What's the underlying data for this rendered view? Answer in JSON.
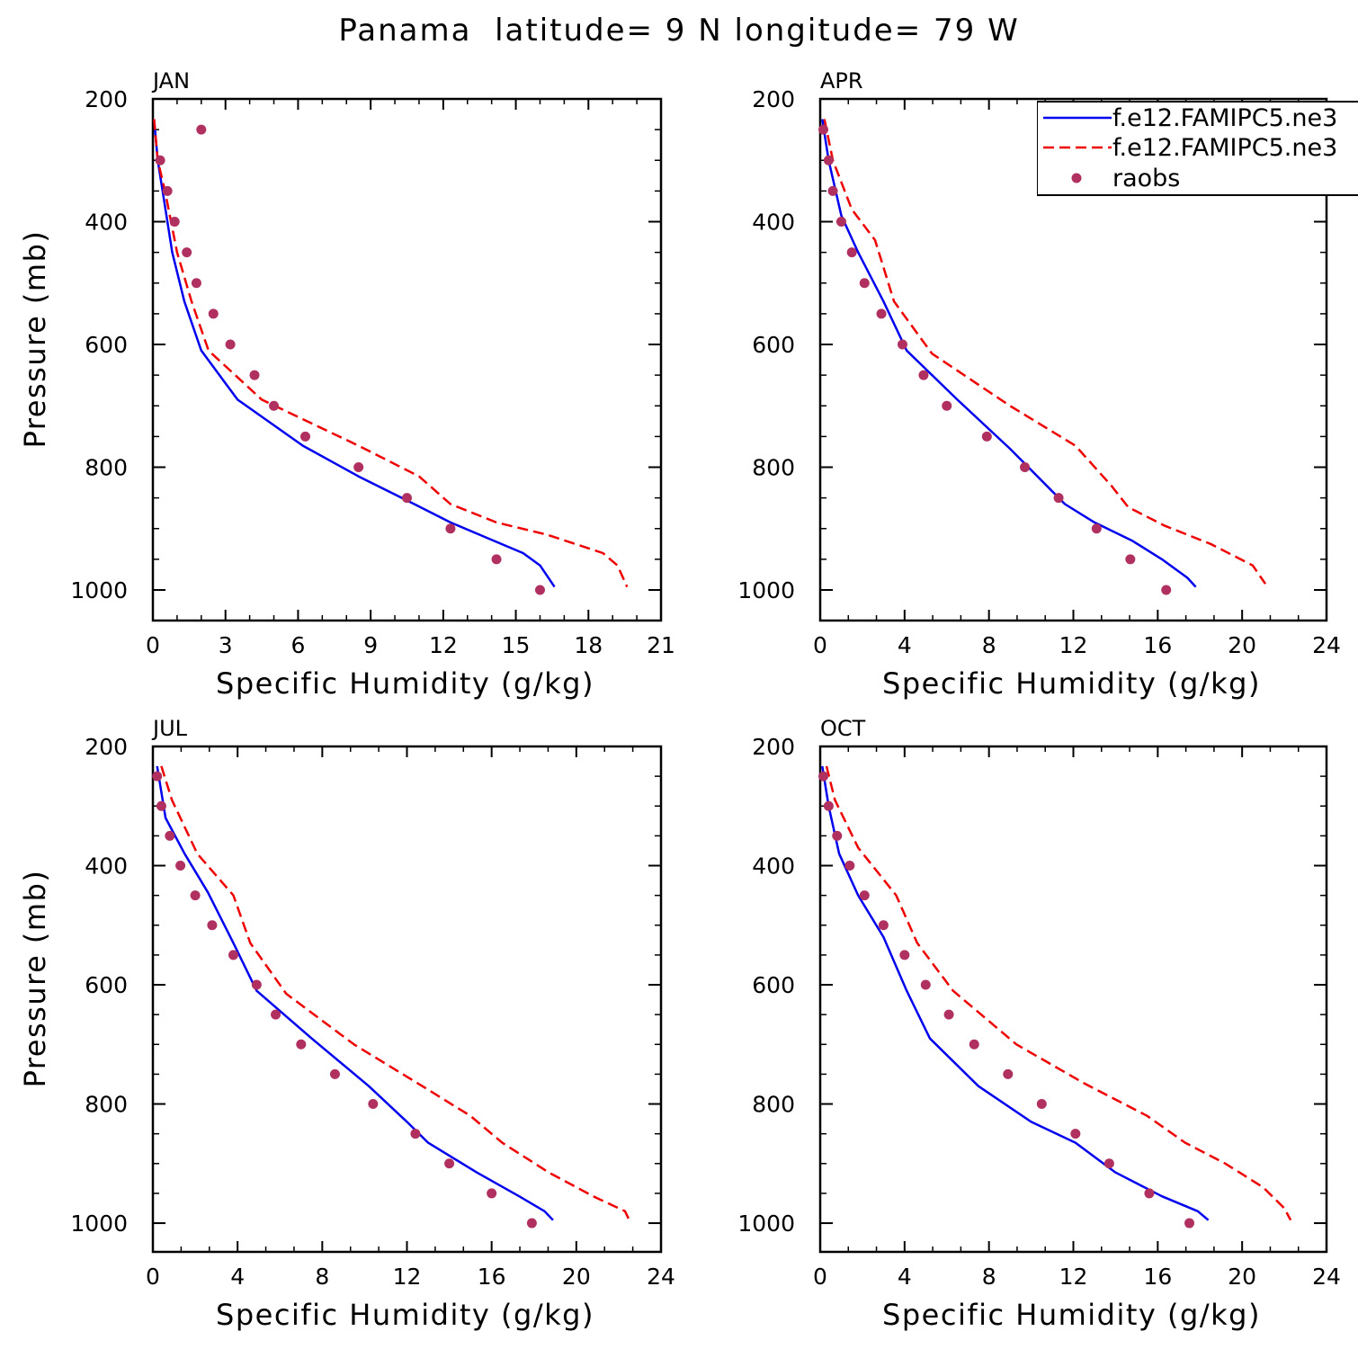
{
  "figure": {
    "title": "Panama  latitude= 9 N longitude= 79 W"
  },
  "chart_data": [
    {
      "type": "line",
      "panel": "JAN",
      "xlabel": "Specific Humidity (g/kg)",
      "ylabel": "Pressure (mb)",
      "xlim": [
        0,
        21
      ],
      "ylim": [
        200,
        1000
      ],
      "y_inverted": true,
      "xticks": [
        0,
        3,
        6,
        9,
        12,
        15,
        18,
        21
      ],
      "yticks": [
        200,
        400,
        600,
        800,
        1000
      ],
      "series": [
        {
          "name": "f.e12.FAMIPC5.ne3",
          "style": "solid",
          "color": "#0000ee",
          "x": [
            0.05,
            0.2,
            0.4,
            0.8,
            1.3,
            2.0,
            3.5,
            6.2,
            8.5,
            10.8,
            12.3,
            13.8,
            15.3,
            16.0,
            16.6
          ],
          "y": [
            233,
            300,
            350,
            450,
            530,
            610,
            690,
            765,
            815,
            860,
            890,
            915,
            940,
            960,
            995
          ]
        },
        {
          "name": "f.e12.FAMIPC5.ne3",
          "style": "dashed",
          "color": "#ee0000",
          "x": [
            0.05,
            0.2,
            0.5,
            1.0,
            1.6,
            2.3,
            4.5,
            8.5,
            11.0,
            12.3,
            14.2,
            16.3,
            18.6,
            19.2,
            19.6
          ],
          "y": [
            233,
            300,
            350,
            450,
            530,
            610,
            690,
            765,
            815,
            860,
            890,
            910,
            940,
            960,
            995
          ]
        },
        {
          "name": "raobs",
          "style": "markers",
          "color": "#b03060",
          "x": [
            2.0,
            0.3,
            0.6,
            0.9,
            1.4,
            1.8,
            2.5,
            3.2,
            4.2,
            5.0,
            6.3,
            8.5,
            10.5,
            12.3,
            14.2,
            16.0
          ],
          "y": [
            250,
            300,
            350,
            400,
            450,
            500,
            550,
            600,
            650,
            700,
            750,
            800,
            850,
            900,
            950,
            1000
          ]
        }
      ]
    },
    {
      "type": "line",
      "panel": "APR",
      "xlabel": "Specific Humidity (g/kg)",
      "ylabel": "",
      "xlim": [
        0,
        24
      ],
      "ylim": [
        200,
        1000
      ],
      "y_inverted": true,
      "xticks": [
        0,
        4,
        8,
        12,
        16,
        20,
        24
      ],
      "yticks": [
        200,
        400,
        600,
        800,
        1000
      ],
      "legend": "top-right",
      "series": [
        {
          "name": "f.e12.FAMIPC5.ne3",
          "style": "solid",
          "color": "#0000ee",
          "x": [
            0.1,
            0.4,
            1.0,
            1.8,
            3.0,
            4.1,
            6.5,
            9.0,
            11.6,
            13.0,
            14.8,
            16.2,
            17.4,
            17.8
          ],
          "y": [
            233,
            300,
            390,
            450,
            530,
            610,
            690,
            770,
            860,
            890,
            920,
            950,
            980,
            995
          ]
        },
        {
          "name": "f.e12.FAMIPC5.ne3",
          "style": "dashed",
          "color": "#ee0000",
          "x": [
            0.2,
            0.6,
            1.5,
            2.6,
            3.5,
            5.3,
            9.0,
            12.1,
            13.8,
            14.6,
            16.3,
            18.5,
            20.5,
            21.1
          ],
          "y": [
            233,
            300,
            380,
            430,
            530,
            615,
            700,
            765,
            830,
            865,
            895,
            925,
            960,
            990
          ]
        },
        {
          "name": "raobs",
          "style": "markers",
          "color": "#b03060",
          "x": [
            0.15,
            0.4,
            0.6,
            1.0,
            1.5,
            2.1,
            2.9,
            3.9,
            4.9,
            6.0,
            7.9,
            9.7,
            11.3,
            13.1,
            14.7,
            16.4
          ],
          "y": [
            250,
            300,
            350,
            400,
            450,
            500,
            550,
            600,
            650,
            700,
            750,
            800,
            850,
            900,
            950,
            1000
          ]
        }
      ]
    },
    {
      "type": "line",
      "panel": "JUL",
      "xlabel": "Specific Humidity (g/kg)",
      "ylabel": "Pressure (mb)",
      "xlim": [
        0,
        24
      ],
      "ylim": [
        200,
        1000
      ],
      "y_inverted": true,
      "xticks": [
        0,
        4,
        8,
        12,
        16,
        20,
        24
      ],
      "yticks": [
        200,
        400,
        600,
        800,
        1000
      ],
      "series": [
        {
          "name": "f.e12.FAMIPC5.ne3",
          "style": "solid",
          "color": "#0000ee",
          "x": [
            0.2,
            0.6,
            1.5,
            2.6,
            3.8,
            4.9,
            7.5,
            10.2,
            12.0,
            13.0,
            15.3,
            17.3,
            18.5,
            18.9
          ],
          "y": [
            233,
            320,
            380,
            445,
            530,
            610,
            690,
            770,
            830,
            865,
            915,
            955,
            980,
            995
          ]
        },
        {
          "name": "f.e12.FAMIPC5.ne3",
          "style": "dashed",
          "color": "#ee0000",
          "x": [
            0.4,
            0.9,
            2.1,
            3.8,
            4.6,
            6.3,
            9.5,
            12.5,
            15.0,
            16.5,
            18.7,
            20.8,
            22.3,
            22.5
          ],
          "y": [
            233,
            290,
            380,
            450,
            530,
            615,
            700,
            765,
            820,
            865,
            915,
            955,
            980,
            995
          ]
        },
        {
          "name": "raobs",
          "style": "markers",
          "color": "#b03060",
          "x": [
            0.2,
            0.4,
            0.8,
            1.3,
            2.0,
            2.8,
            3.8,
            4.9,
            5.8,
            7.0,
            8.6,
            10.4,
            12.4,
            14.0,
            16.0,
            17.9
          ],
          "y": [
            250,
            300,
            350,
            400,
            450,
            500,
            550,
            600,
            650,
            700,
            750,
            800,
            850,
            900,
            950,
            1000
          ]
        }
      ]
    },
    {
      "type": "line",
      "panel": "OCT",
      "xlabel": "Specific Humidity (g/kg)",
      "ylabel": "",
      "xlim": [
        0,
        24
      ],
      "ylim": [
        200,
        1000
      ],
      "y_inverted": true,
      "xticks": [
        0,
        4,
        8,
        12,
        16,
        20,
        24
      ],
      "yticks": [
        200,
        400,
        600,
        800,
        1000
      ],
      "series": [
        {
          "name": "f.e12.FAMIPC5.ne3",
          "style": "solid",
          "color": "#0000ee",
          "x": [
            0.1,
            0.4,
            0.9,
            1.8,
            3.0,
            4.1,
            5.2,
            7.5,
            10.0,
            12.1,
            14.0,
            16.2,
            17.9,
            18.4
          ],
          "y": [
            233,
            300,
            380,
            450,
            520,
            610,
            690,
            770,
            830,
            865,
            915,
            955,
            980,
            995
          ]
        },
        {
          "name": "f.e12.FAMIPC5.ne3",
          "style": "dashed",
          "color": "#ee0000",
          "x": [
            0.3,
            0.7,
            1.8,
            3.6,
            4.6,
            6.3,
            9.3,
            12.5,
            15.5,
            17.3,
            19.2,
            21.0,
            22.0,
            22.3
          ],
          "y": [
            233,
            290,
            370,
            450,
            530,
            610,
            700,
            765,
            820,
            865,
            900,
            940,
            975,
            995
          ]
        },
        {
          "name": "raobs",
          "style": "markers",
          "color": "#b03060",
          "x": [
            0.15,
            0.4,
            0.8,
            1.4,
            2.1,
            3.0,
            4.0,
            5.0,
            6.1,
            7.3,
            8.9,
            10.5,
            12.1,
            13.7,
            15.6,
            17.5
          ],
          "y": [
            250,
            300,
            350,
            400,
            450,
            500,
            550,
            600,
            650,
            700,
            750,
            800,
            850,
            900,
            950,
            1000
          ]
        }
      ]
    }
  ],
  "legend": {
    "entries": [
      {
        "label": "f.e12.FAMIPC5.ne3",
        "style": "solid",
        "color": "#0000ee"
      },
      {
        "label": "f.e12.FAMIPC5.ne3",
        "style": "dashed",
        "color": "#ee0000"
      },
      {
        "label": "raobs",
        "style": "markers",
        "color": "#b03060"
      }
    ]
  }
}
